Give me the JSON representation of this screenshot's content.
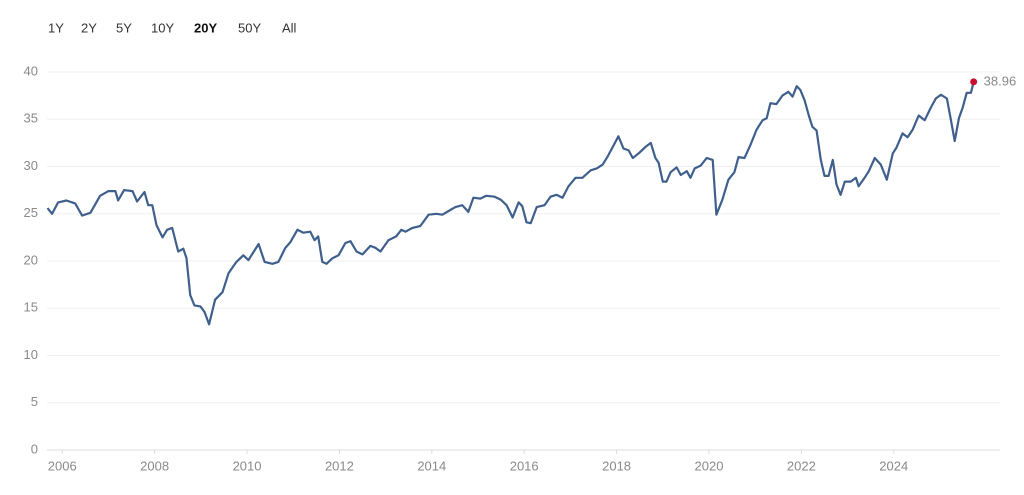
{
  "controls": {
    "buttons": [
      "1Y",
      "2Y",
      "5Y",
      "10Y",
      "20Y",
      "50Y",
      "All"
    ],
    "active": "20Y"
  },
  "chart_data": {
    "type": "line",
    "x": [
      2005.68,
      2005.78,
      2005.91,
      2006.09,
      2006.28,
      2006.43,
      2006.61,
      2006.82,
      2007.0,
      2007.15,
      2007.21,
      2007.34,
      2007.52,
      2007.62,
      2007.78,
      2007.86,
      2007.95,
      2008.04,
      2008.17,
      2008.27,
      2008.38,
      2008.51,
      2008.62,
      2008.69,
      2008.77,
      2008.86,
      2008.99,
      2009.08,
      2009.18,
      2009.31,
      2009.47,
      2009.6,
      2009.77,
      2009.92,
      2010.03,
      2010.25,
      2010.38,
      2010.55,
      2010.68,
      2010.83,
      2010.94,
      2011.09,
      2011.22,
      2011.37,
      2011.46,
      2011.54,
      2011.63,
      2011.72,
      2011.85,
      2011.98,
      2012.13,
      2012.24,
      2012.37,
      2012.5,
      2012.67,
      2012.78,
      2012.89,
      2013.06,
      2013.23,
      2013.34,
      2013.43,
      2013.58,
      2013.75,
      2013.93,
      2014.1,
      2014.23,
      2014.4,
      2014.51,
      2014.66,
      2014.79,
      2014.9,
      2015.05,
      2015.18,
      2015.36,
      2015.49,
      2015.62,
      2015.75,
      2015.88,
      2015.96,
      2016.05,
      2016.14,
      2016.27,
      2016.44,
      2016.57,
      2016.7,
      2016.83,
      2016.96,
      2017.11,
      2017.26,
      2017.44,
      2017.57,
      2017.7,
      2017.8,
      2017.91,
      2018.04,
      2018.15,
      2018.26,
      2018.35,
      2018.48,
      2018.63,
      2018.74,
      2018.84,
      2018.91,
      2019.0,
      2019.08,
      2019.17,
      2019.3,
      2019.39,
      2019.52,
      2019.6,
      2019.69,
      2019.82,
      2019.95,
      2020.08,
      2020.16,
      2020.29,
      2020.42,
      2020.55,
      2020.64,
      2020.77,
      2020.9,
      2021.03,
      2021.16,
      2021.25,
      2021.33,
      2021.46,
      2021.59,
      2021.72,
      2021.81,
      2021.9,
      2021.98,
      2022.07,
      2022.16,
      2022.24,
      2022.33,
      2022.42,
      2022.5,
      2022.59,
      2022.68,
      2022.76,
      2022.85,
      2022.94,
      2023.07,
      2023.18,
      2023.24,
      2023.37,
      2023.46,
      2023.59,
      2023.72,
      2023.85,
      2023.98,
      2024.06,
      2024.19,
      2024.3,
      2024.41,
      2024.54,
      2024.67,
      2024.8,
      2024.91,
      2025.02,
      2025.15,
      2025.23,
      2025.32,
      2025.41,
      2025.49,
      2025.58,
      2025.67,
      2025.73
    ],
    "series": [
      {
        "color": "#3f5f8c",
        "values": [
          25.6,
          25.0,
          26.2,
          26.4,
          26.1,
          24.8,
          25.1,
          26.9,
          27.4,
          27.4,
          26.4,
          27.5,
          27.4,
          26.3,
          27.3,
          25.9,
          25.9,
          23.8,
          22.5,
          23.3,
          23.5,
          21.0,
          21.3,
          20.3,
          16.4,
          15.3,
          15.2,
          14.6,
          13.3,
          15.9,
          16.7,
          18.7,
          19.9,
          20.6,
          20.1,
          21.8,
          19.9,
          19.7,
          19.9,
          21.4,
          22.0,
          23.3,
          23.0,
          23.1,
          22.2,
          22.6,
          19.9,
          19.7,
          20.3,
          20.6,
          21.9,
          22.1,
          21.0,
          20.7,
          21.6,
          21.4,
          21.0,
          22.2,
          22.6,
          23.3,
          23.1,
          23.5,
          23.7,
          24.9,
          25.0,
          24.9,
          25.4,
          25.7,
          25.9,
          25.2,
          26.7,
          26.6,
          26.9,
          26.8,
          26.5,
          25.9,
          24.6,
          26.2,
          25.8,
          24.1,
          24.0,
          25.7,
          25.9,
          26.8,
          27.0,
          26.7,
          27.9,
          28.8,
          28.8,
          29.6,
          29.8,
          30.2,
          31.0,
          32.0,
          33.2,
          31.9,
          31.7,
          30.9,
          31.4,
          32.1,
          32.5,
          30.9,
          30.4,
          28.4,
          28.4,
          29.4,
          29.9,
          29.1,
          29.5,
          28.8,
          29.8,
          30.1,
          30.9,
          30.7,
          24.9,
          26.5,
          28.6,
          29.4,
          31.0,
          30.9,
          32.3,
          33.9,
          34.9,
          35.1,
          36.7,
          36.6,
          37.5,
          37.9,
          37.4,
          38.5,
          38.1,
          37.0,
          35.4,
          34.2,
          33.8,
          30.7,
          29.0,
          29.0,
          30.7,
          28.1,
          27.0,
          28.4,
          28.4,
          28.8,
          27.9,
          28.8,
          29.5,
          30.9,
          30.2,
          28.6,
          31.4,
          32.0,
          33.5,
          33.1,
          33.9,
          35.4,
          34.9,
          36.2,
          37.2,
          37.6,
          37.2,
          35.1,
          32.7,
          35.1,
          36.2,
          37.8,
          37.8,
          38.96
        ]
      }
    ],
    "marker_color": "#c8102e",
    "xlim": [
      2005.67,
      2026.3
    ],
    "xticks": [
      2006,
      2008,
      2010,
      2012,
      2014,
      2016,
      2018,
      2020,
      2022,
      2024
    ],
    "ylim": [
      0,
      40
    ],
    "yticks": [
      0,
      5,
      10,
      15,
      20,
      25,
      30,
      35,
      40
    ],
    "grid": true
  }
}
